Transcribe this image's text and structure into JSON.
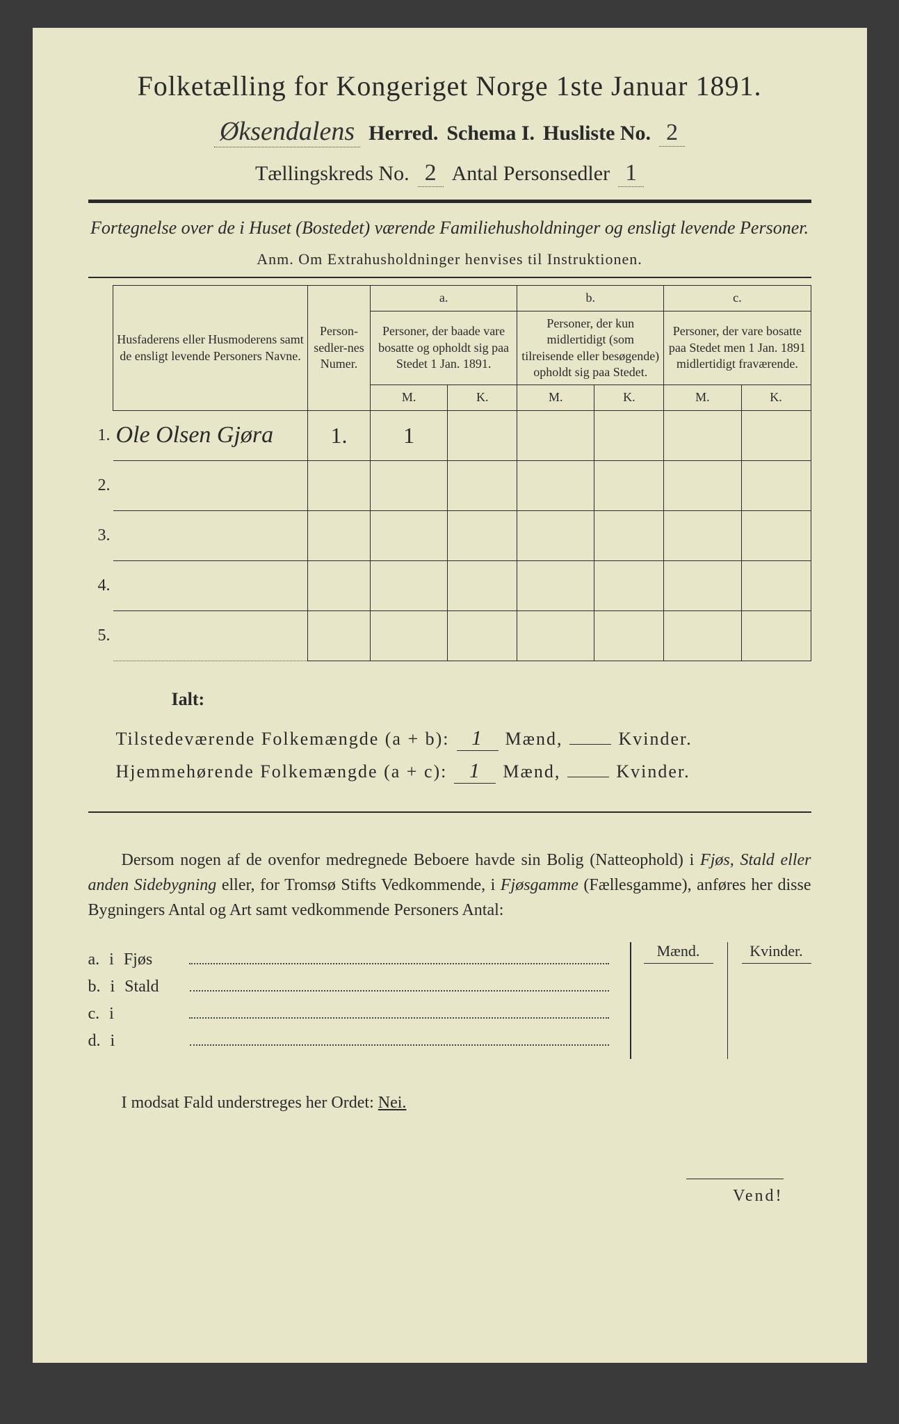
{
  "colors": {
    "paper": "#e8e6c8",
    "ink": "#2a2a2a",
    "background": "#3a3a3a"
  },
  "title": "Folketælling for Kongeriget Norge 1ste Januar 1891.",
  "header": {
    "herred_handwritten": "Øksendalens",
    "herred_label": "Herred.",
    "schema_label": "Schema I.",
    "husliste_label": "Husliste No.",
    "husliste_no": "2",
    "kreds_label": "Tællingskreds No.",
    "kreds_no": "2",
    "antal_label": "Antal Personsedler",
    "antal_no": "1"
  },
  "intro": {
    "italic": "Fortegnelse over de i Huset (Bostedet) værende Familiehusholdninger og ensligt levende Personer.",
    "anm": "Anm. Om Extrahusholdninger henvises til Instruktionen."
  },
  "table": {
    "col_names": "Husfaderens eller Husmoderens samt de ensligt levende Personers Navne.",
    "col_numer": "Person-sedler-nes Numer.",
    "col_a_top": "a.",
    "col_a": "Personer, der baade vare bosatte og opholdt sig paa Stedet 1 Jan. 1891.",
    "col_b_top": "b.",
    "col_b": "Personer, der kun midlertidigt (som tilreisende eller besøgende) opholdt sig paa Stedet.",
    "col_c_top": "c.",
    "col_c": "Personer, der vare bosatte paa Stedet men 1 Jan. 1891 midlertidigt fraværende.",
    "mk_m": "M.",
    "mk_k": "K.",
    "rows": [
      {
        "n": "1.",
        "name": "Ole Olsen Gjøra",
        "numer": "1.",
        "a_m": "1",
        "a_k": "",
        "b_m": "",
        "b_k": "",
        "c_m": "",
        "c_k": ""
      },
      {
        "n": "2.",
        "name": "",
        "numer": "",
        "a_m": "",
        "a_k": "",
        "b_m": "",
        "b_k": "",
        "c_m": "",
        "c_k": ""
      },
      {
        "n": "3.",
        "name": "",
        "numer": "",
        "a_m": "",
        "a_k": "",
        "b_m": "",
        "b_k": "",
        "c_m": "",
        "c_k": ""
      },
      {
        "n": "4.",
        "name": "",
        "numer": "",
        "a_m": "",
        "a_k": "",
        "b_m": "",
        "b_k": "",
        "c_m": "",
        "c_k": ""
      },
      {
        "n": "5.",
        "name": "",
        "numer": "",
        "a_m": "",
        "a_k": "",
        "b_m": "",
        "b_k": "",
        "c_m": "",
        "c_k": ""
      }
    ]
  },
  "summary": {
    "ialt": "Ialt:",
    "line1_label": "Tilstedeværende Folkemængde (a + b):",
    "line1_m": "1",
    "line2_label": "Hjemmehørende Folkemængde (a + c):",
    "line2_m": "1",
    "maend": "Mænd,",
    "kvinder": "Kvinder."
  },
  "paragraph": "Dersom nogen af de ovenfor medregnede Beboere havde sin Bolig (Natteophold) i Fjøs, Stald eller anden Sidebygning eller, for Tromsø Stifts Vedkommende, i Fjøsgamme (Fællesgamme), anføres her disse Bygningers Antal og Art samt vedkommende Personers Antal:",
  "outbuildings": {
    "maend": "Mænd.",
    "kvinder": "Kvinder.",
    "rows": [
      {
        "letter": "a.",
        "i": "i",
        "label": "Fjøs"
      },
      {
        "letter": "b.",
        "i": "i",
        "label": "Stald"
      },
      {
        "letter": "c.",
        "i": "i",
        "label": ""
      },
      {
        "letter": "d.",
        "i": "i",
        "label": ""
      }
    ]
  },
  "nei_line": {
    "prefix": "I modsat Fald understreges her Ordet: ",
    "nei": "Nei."
  },
  "vend": "Vend!"
}
